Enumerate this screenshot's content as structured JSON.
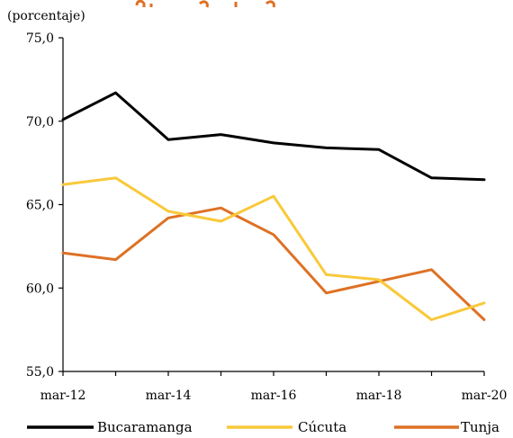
{
  "chart_data": {
    "type": "line",
    "title": "",
    "unit_label": "(porcentaje)",
    "x": [
      "mar-12",
      "mar-13",
      "mar-14",
      "mar-15",
      "mar-16",
      "mar-17",
      "mar-18",
      "mar-19",
      "mar-20"
    ],
    "x_tick_labels": [
      "mar-12",
      "mar-14",
      "mar-16",
      "mar-18",
      "mar-20"
    ],
    "y_tick_labels": [
      "75,0",
      "70,0",
      "65,0",
      "60,0",
      "55,0"
    ],
    "y_ticks": [
      75,
      70,
      65,
      60,
      55
    ],
    "ylim": [
      55,
      75
    ],
    "grid": false,
    "legend_position": "bottom",
    "series": [
      {
        "name": "Bucaramanga",
        "color": "#000000",
        "values": [
          70.1,
          71.7,
          68.9,
          69.2,
          68.7,
          68.4,
          68.3,
          66.6,
          66.5
        ]
      },
      {
        "name": "Cúcuta",
        "color": "#F9C93A",
        "values": [
          66.2,
          66.6,
          64.6,
          64.0,
          65.5,
          60.8,
          60.5,
          58.1,
          59.1
        ]
      },
      {
        "name": "Tunja",
        "color": "#DE7124",
        "values": [
          62.1,
          61.7,
          64.2,
          64.8,
          63.2,
          59.7,
          60.4,
          61.1,
          58.1
        ]
      }
    ]
  }
}
